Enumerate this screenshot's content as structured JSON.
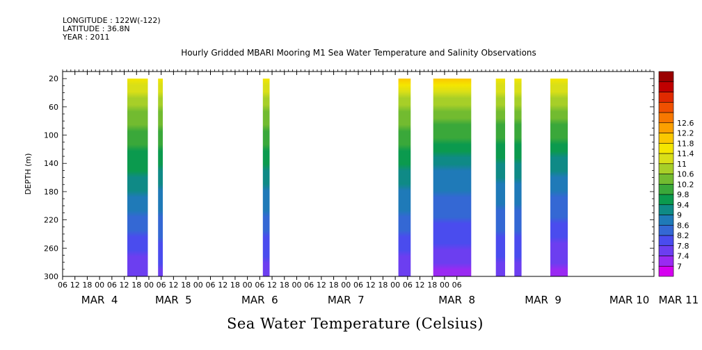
{
  "header": {
    "longitude": "LONGITUDE : 122W(-122)",
    "latitude": "LATITUDE : 36.8N",
    "year": "YEAR : 2011"
  },
  "chart_data": {
    "type": "heatmap",
    "title": "Hourly Gridded MBARI Mooring M1 Sea Water Temperature and Salinity Observations",
    "subtitle": "Sea Water Temperature (Celsius)",
    "ylabel": "DEPTH (m)",
    "xlabel": "",
    "x_range_hours": [
      -18,
      270
    ],
    "ylim": [
      300,
      10
    ],
    "y_ticks": [
      20,
      60,
      100,
      140,
      180,
      220,
      260,
      300
    ],
    "x_hour_ticks": [
      "06",
      "12",
      "18",
      "00",
      "06",
      "12",
      "18",
      "00",
      "06",
      "12",
      "18",
      "00",
      "06",
      "12",
      "18",
      "00",
      "06",
      "12",
      "18",
      "00",
      "06",
      "12",
      "18",
      "00",
      "06",
      "12",
      "18",
      "00",
      "06",
      "12",
      "18",
      "00",
      "06"
    ],
    "x_date_labels": [
      {
        "label": "MAR  4",
        "hour": 0
      },
      {
        "label": "MAR  5",
        "hour": 36
      },
      {
        "label": "MAR  6",
        "hour": 78
      },
      {
        "label": "MAR  7",
        "hour": 120
      },
      {
        "label": "MAR  8",
        "hour": 174
      },
      {
        "label": "MAR  9",
        "hour": 216
      },
      {
        "label": "MAR 10",
        "hour": 258
      },
      {
        "label": "MAR 11",
        "hour": 282
      }
    ],
    "colorbar": {
      "levels": [
        7,
        7.4,
        7.8,
        8.2,
        8.6,
        9,
        9.4,
        9.8,
        10.2,
        10.6,
        11,
        11.4,
        11.8,
        12.2,
        12.6
      ],
      "labels": [
        "7",
        "7.4",
        "7.8",
        "8.2",
        "8.6",
        "9",
        "9.4",
        "9.8",
        "10.2",
        "10.6",
        "11",
        "11.4",
        "11.8",
        "12.2",
        "12.6"
      ],
      "colors": [
        "#d600f0",
        "#9a2af2",
        "#6c3ef0",
        "#4a4cee",
        "#3468d4",
        "#1f7ab8",
        "#0f8a86",
        "#0b9a4e",
        "#3aa83a",
        "#72bb30",
        "#a7cf28",
        "#d9df18",
        "#f4e600",
        "#fbc800",
        "#fca000",
        "#f87800",
        "#f05000",
        "#e02a00",
        "#c00000",
        "#9a0000"
      ]
    },
    "segments": [
      {
        "start_hour": 13.5,
        "end_hour": 23.5,
        "surface": 11.5,
        "mid": 9.3,
        "bottom": 7.4
      },
      {
        "start_hour": 28.5,
        "end_hour": 30.8,
        "surface": 11.4,
        "mid": 9.2,
        "bottom": 7.6
      },
      {
        "start_hour": 79.5,
        "end_hour": 82.8,
        "surface": 11.6,
        "mid": 9.2,
        "bottom": 7.5
      },
      {
        "start_hour": 145.5,
        "end_hour": 151.5,
        "surface": 11.8,
        "mid": 9.2,
        "bottom": 7.4
      },
      {
        "start_hour": 162.5,
        "end_hour": 181.0,
        "surface": 11.9,
        "mid": 8.8,
        "bottom": 7.3
      },
      {
        "start_hour": 193.0,
        "end_hour": 197.5,
        "surface": 11.4,
        "mid": 9.0,
        "bottom": 7.6
      },
      {
        "start_hour": 202.0,
        "end_hour": 205.5,
        "surface": 11.5,
        "mid": 9.0,
        "bottom": 7.6
      },
      {
        "start_hour": 219.5,
        "end_hour": 228.0,
        "surface": 11.5,
        "mid": 8.9,
        "bottom": 7.2
      }
    ]
  }
}
